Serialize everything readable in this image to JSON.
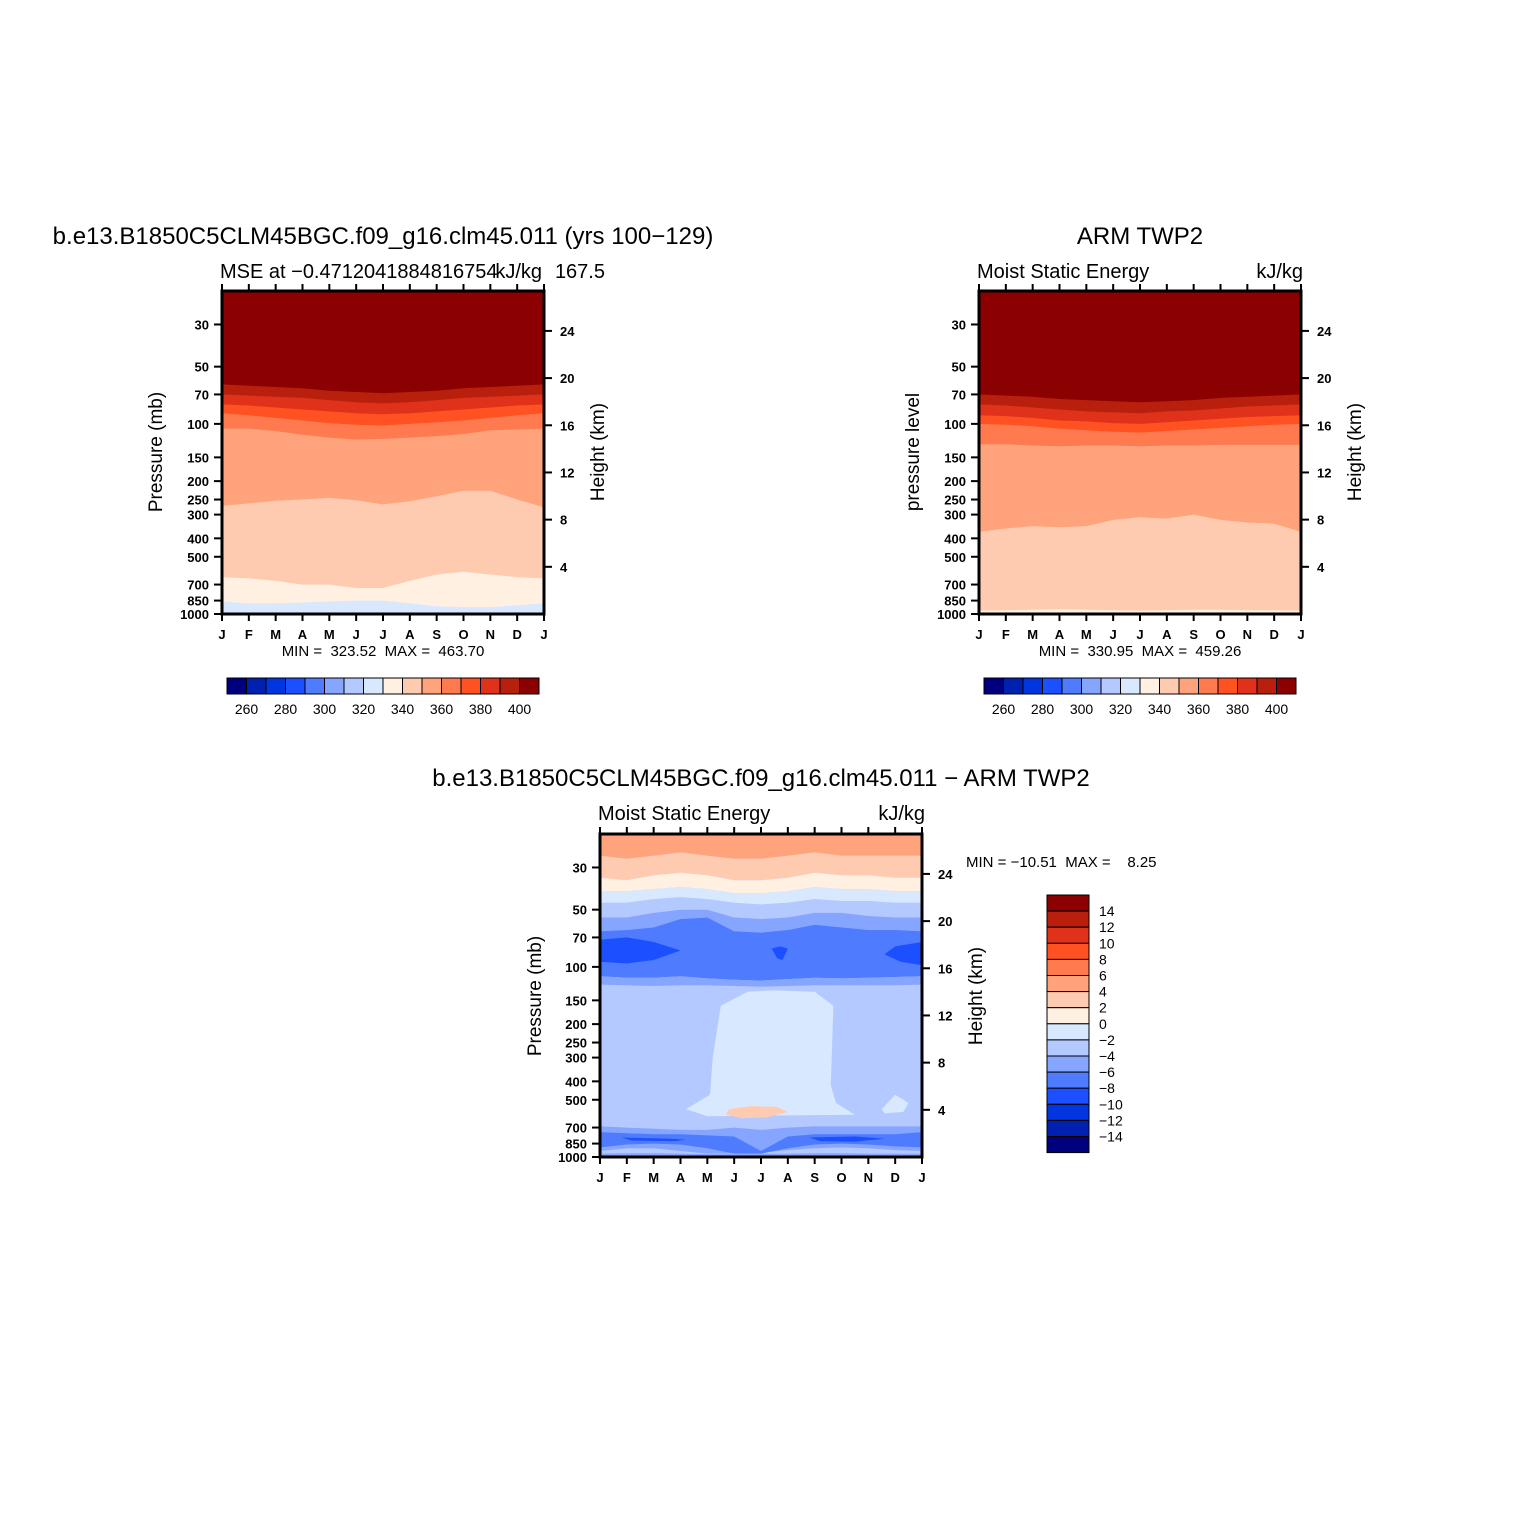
{
  "chart_data": [
    {
      "type": "heatmap",
      "title": "b.e13.B1850C5CLM45BGC.f09_g16.clm45.011 (yrs 100−129)",
      "subtitle_left": "MSE at −0.4712041884816754",
      "subtitle_right": "kJ/kg",
      "subtitle_extra": "167.5",
      "ylabel": "Pressure (mb)",
      "ylabel_right": "Height (km)",
      "x_ticks": [
        "J",
        "F",
        "M",
        "A",
        "M",
        "J",
        "J",
        "A",
        "S",
        "O",
        "N",
        "D",
        "J"
      ],
      "y_ticks": [
        "30",
        "50",
        "70",
        "100",
        "150",
        "200",
        "250",
        "300",
        "400",
        "500",
        "700",
        "850",
        "1000"
      ],
      "y_ticks_right": [
        "24",
        "20",
        "16",
        "12",
        "8",
        "4"
      ],
      "stats": "MIN =  323.52  MAX =  463.70",
      "colorbar_ticks": [
        "260",
        "280",
        "300",
        "320",
        "340",
        "360",
        "380",
        "400"
      ],
      "contour_boundaries_kJkg": [
        {
          "level": 400,
          "p_mb": [
            52,
            53,
            54,
            55,
            56,
            57,
            57,
            57,
            56,
            55,
            54,
            53,
            52
          ]
        },
        {
          "level": 390,
          "p_mb": [
            62,
            63,
            64,
            65,
            67,
            68,
            69,
            68,
            67,
            65,
            64,
            63,
            62
          ]
        },
        {
          "level": 380,
          "p_mb": [
            70,
            71,
            72,
            73,
            75,
            77,
            78,
            77,
            75,
            73,
            72,
            71,
            70
          ]
        },
        {
          "level": 370,
          "p_mb": [
            79,
            80,
            82,
            84,
            86,
            88,
            89,
            88,
            86,
            84,
            82,
            80,
            79
          ]
        },
        {
          "level": 360,
          "p_mb": [
            88,
            90,
            93,
            96,
            99,
            101,
            102,
            100,
            98,
            96,
            93,
            90,
            88
          ]
        },
        {
          "level": 350,
          "p_mb": [
            106,
            106,
            109,
            114,
            118,
            121,
            120,
            118,
            116,
            113,
            108,
            107,
            106
          ]
        },
        {
          "level": 340,
          "p_mb": [
            270,
            262,
            254,
            250,
            245,
            252,
            265,
            255,
            240,
            225,
            225,
            250,
            275
          ]
        },
        {
          "level": 330,
          "p_mb": [
            640,
            650,
            670,
            700,
            700,
            730,
            730,
            670,
            620,
            600,
            620,
            640,
            650
          ]
        },
        {
          "level": 320,
          "p_mb": [
            860,
            880,
            880,
            870,
            860,
            850,
            850,
            880,
            910,
            920,
            920,
            900,
            880
          ]
        }
      ]
    },
    {
      "type": "heatmap",
      "title": "ARM TWP2",
      "subtitle_left": "Moist Static Energy",
      "subtitle_right": "kJ/kg",
      "ylabel": "pressure level",
      "ylabel_right": "Height (km)",
      "x_ticks": [
        "J",
        "F",
        "M",
        "A",
        "M",
        "J",
        "J",
        "A",
        "S",
        "O",
        "N",
        "D",
        "J"
      ],
      "y_ticks": [
        "30",
        "50",
        "70",
        "100",
        "150",
        "200",
        "250",
        "300",
        "400",
        "500",
        "700",
        "850",
        "1000"
      ],
      "y_ticks_right": [
        "24",
        "20",
        "16",
        "12",
        "8",
        "4"
      ],
      "stats": "MIN =  330.95  MAX =  459.26",
      "colorbar_ticks": [
        "260",
        "280",
        "300",
        "320",
        "340",
        "360",
        "380",
        "400"
      ],
      "contour_boundaries_kJkg": [
        {
          "level": 400,
          "p_mb": [
            58,
            59,
            60,
            61,
            62,
            63,
            64,
            64,
            62,
            61,
            60,
            59,
            58
          ]
        },
        {
          "level": 390,
          "p_mb": [
            70,
            71,
            72,
            74,
            75,
            76,
            77,
            76,
            75,
            73,
            72,
            71,
            70
          ]
        },
        {
          "level": 380,
          "p_mb": [
            79,
            80,
            82,
            84,
            86,
            87,
            88,
            86,
            85,
            83,
            81,
            80,
            79
          ]
        },
        {
          "level": 370,
          "p_mb": [
            90,
            91,
            93,
            96,
            97,
            99,
            100,
            98,
            96,
            94,
            92,
            91,
            90
          ]
        },
        {
          "level": 360,
          "p_mb": [
            100,
            101,
            103,
            106,
            108,
            110,
            111,
            109,
            107,
            105,
            103,
            101,
            100
          ]
        },
        {
          "level": 350,
          "p_mb": [
            128,
            128,
            130,
            131,
            130,
            130,
            131,
            130,
            130,
            129,
            129,
            129,
            129
          ]
        },
        {
          "level": 340,
          "p_mb": [
            370,
            355,
            345,
            350,
            345,
            320,
            310,
            315,
            300,
            320,
            330,
            335,
            370
          ]
        },
        {
          "level": 330,
          "p_mb": [
            960,
            955,
            950,
            945,
            950,
            955,
            960,
            955,
            950,
            950,
            955,
            955,
            960
          ]
        }
      ]
    },
    {
      "type": "heatmap",
      "title": "b.e13.B1850C5CLM45BGC.f09_g16.clm45.011 − ARM TWP2",
      "subtitle_left": "Moist Static Energy",
      "subtitle_right": "kJ/kg",
      "ylabel": "Pressure (mb)",
      "ylabel_right": "Height (km)",
      "x_ticks": [
        "J",
        "F",
        "M",
        "A",
        "M",
        "J",
        "J",
        "A",
        "S",
        "O",
        "N",
        "D",
        "J"
      ],
      "y_ticks": [
        "30",
        "50",
        "70",
        "100",
        "150",
        "200",
        "250",
        "300",
        "400",
        "500",
        "700",
        "850",
        "1000"
      ],
      "y_ticks_right": [
        "24",
        "20",
        "16",
        "12",
        "8",
        "4"
      ],
      "stats": "MIN = −10.51  MAX =    8.25",
      "colorbar_ticks": [
        "14",
        "12",
        "10",
        "8",
        "6",
        "4",
        "2",
        "0",
        "−2",
        "−4",
        "−6",
        "−8",
        "−10",
        "−12",
        "−14"
      ],
      "description_levels": {
        "top_30mb": "positive 2 to 8",
        "70_to_110mb": "negative −6 to −10",
        "120_to_600mb": "−2 to −4, with a 0 to −2 region in May–Sep and a 0 to 2 patch near 550 mb",
        "700_to_900mb": "negative −6 to −10"
      }
    }
  ],
  "colors": {
    "mse_scale": [
      "#00007f",
      "#0020b0",
      "#0035e0",
      "#1b4fff",
      "#4f7bff",
      "#86a5ff",
      "#b4c9ff",
      "#d8e8ff",
      "#fff0e2",
      "#ffcbb0",
      "#ffa37c",
      "#ff7a4f",
      "#ff5121",
      "#e0321a",
      "#b81f0c",
      "#8b0000"
    ],
    "diff_scale": [
      "#8b0000",
      "#b81f0c",
      "#e0321a",
      "#ff5121",
      "#ff7a4f",
      "#ffa37c",
      "#ffcbb0",
      "#fff0e2",
      "#d8e8ff",
      "#b4c9ff",
      "#86a5ff",
      "#4f7bff",
      "#1b4fff",
      "#0035e0",
      "#0020b0",
      "#00007f"
    ]
  }
}
